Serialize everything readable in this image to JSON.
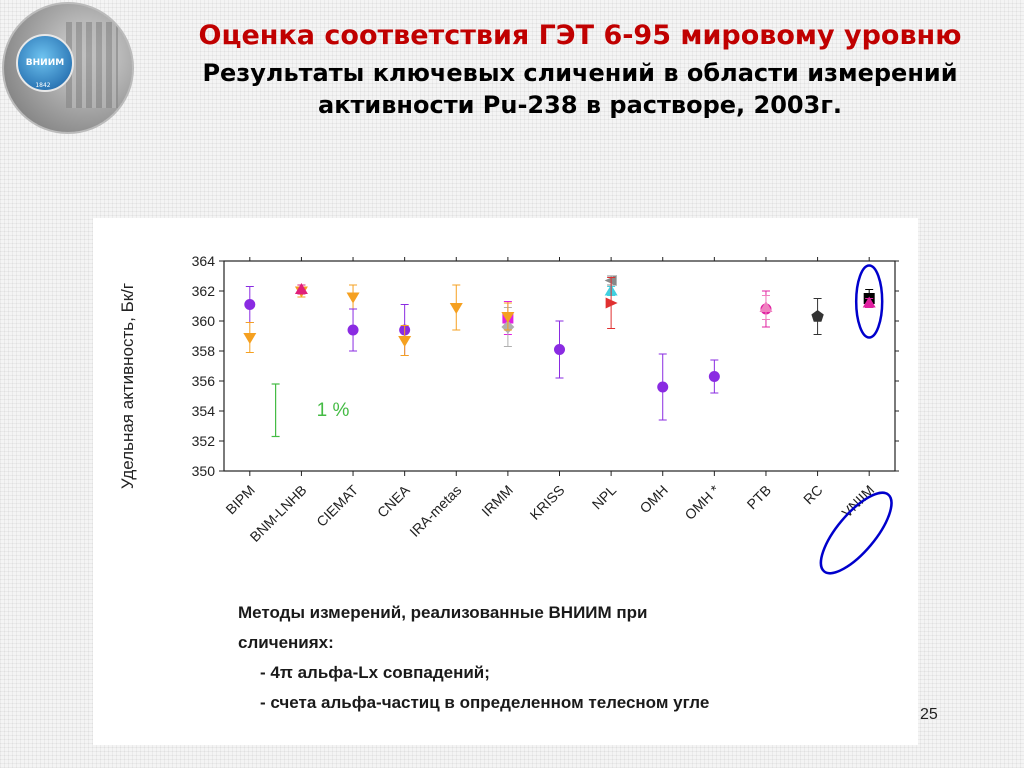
{
  "logo": {
    "label": "ВНИИМ",
    "year": "1842"
  },
  "title": {
    "line1": "Оценка соответствия ГЭТ 6-95 мировому уровню",
    "line2": "Результаты ключевых сличений в области измерений активности Pu-238 в растворе, 2003г."
  },
  "chart_data": {
    "type": "scatter",
    "ylabel": "Удельная активность, Бк/г",
    "ylim": [
      350,
      364
    ],
    "yticks": [
      350,
      352,
      354,
      356,
      358,
      360,
      362,
      364
    ],
    "categories": [
      "BIPM",
      "BNM-LNHB",
      "CIEMAT",
      "CNEA",
      "IRA-metas",
      "IRMM",
      "KRISS",
      "NPL",
      "OMH",
      "OMH *",
      "PTB",
      "RC",
      "VNIIM"
    ],
    "points": [
      {
        "cat": 0,
        "y": 361.1,
        "err": 1.2,
        "marker": "circle",
        "color": "#8a2be2"
      },
      {
        "cat": 0,
        "y": 358.9,
        "err": 1.0,
        "marker": "triangle-down",
        "color": "#f5a020"
      },
      {
        "cat": 1,
        "y": 362.0,
        "err": 0.4,
        "marker": "triangle-down",
        "color": "#f5a020"
      },
      {
        "cat": 1,
        "y": 362.1,
        "err": 0.3,
        "marker": "triangle-up",
        "color": "#e0207a"
      },
      {
        "cat": 2,
        "y": 361.6,
        "err": 0.8,
        "marker": "triangle-down",
        "color": "#f5a020"
      },
      {
        "cat": 2,
        "y": 359.4,
        "err": 1.4,
        "marker": "circle",
        "color": "#8a2be2"
      },
      {
        "cat": 3,
        "y": 359.4,
        "err": 1.7,
        "marker": "circle",
        "color": "#8a2be2"
      },
      {
        "cat": 3,
        "y": 358.7,
        "err": 1.0,
        "marker": "triangle-down",
        "color": "#f5a020"
      },
      {
        "cat": 4,
        "y": 360.9,
        "err": 1.5,
        "marker": "triangle-down",
        "color": "#f5a020"
      },
      {
        "cat": 5,
        "y": 360.2,
        "err": 1.1,
        "marker": "square",
        "color": "#e020e0"
      },
      {
        "cat": 5,
        "y": 359.6,
        "err": 1.3,
        "marker": "diamond",
        "color": "#b0b0b0"
      },
      {
        "cat": 5,
        "y": 360.3,
        "err": 0.9,
        "marker": "triangle-down",
        "color": "#f5a020"
      },
      {
        "cat": 6,
        "y": 358.1,
        "err": 1.9,
        "marker": "circle",
        "color": "#8a2be2"
      },
      {
        "cat": 7,
        "y": 362.7,
        "err": 0.3,
        "marker": "triangle-left",
        "color": "#888888"
      },
      {
        "cat": 7,
        "y": 362.0,
        "err": 0.3,
        "marker": "triangle-up",
        "color": "#40d0e0"
      },
      {
        "cat": 7,
        "y": 361.2,
        "err": 1.7,
        "marker": "triangle-right",
        "color": "#e03030"
      },
      {
        "cat": 8,
        "y": 355.6,
        "err": 2.2,
        "marker": "circle",
        "color": "#8a2be2"
      },
      {
        "cat": 9,
        "y": 356.3,
        "err": 1.1,
        "marker": "circle",
        "color": "#8a2be2"
      },
      {
        "cat": 10,
        "y": 360.8,
        "err": 1.2,
        "marker": "circle",
        "color": "#e020a0"
      },
      {
        "cat": 10,
        "y": 360.9,
        "err": 0.8,
        "marker": "triangle-up",
        "color": "#f080c0"
      },
      {
        "cat": 11,
        "y": 360.3,
        "err": 1.2,
        "marker": "pentagon",
        "color": "#333333"
      },
      {
        "cat": 12,
        "y": 361.5,
        "err": 0.6,
        "marker": "square",
        "color": "#000000"
      },
      {
        "cat": 12,
        "y": 361.2,
        "err": 0.3,
        "marker": "triangle-up",
        "color": "#e020a0"
      }
    ],
    "scale_bar": {
      "cat": 0.5,
      "y_low": 352.3,
      "y_high": 355.8,
      "label": "1 %",
      "color": "#44bb44"
    },
    "highlight": {
      "cat": 12,
      "color": "#0000cc"
    }
  },
  "methods": {
    "line1": "Методы измерений, реализованные ВНИИМ при",
    "line2": "сличениях:",
    "item1": "- 4π альфа-Lx совпадений;",
    "item2": "- счета альфа-частиц в определенном телесном угле"
  },
  "page_number": "25"
}
